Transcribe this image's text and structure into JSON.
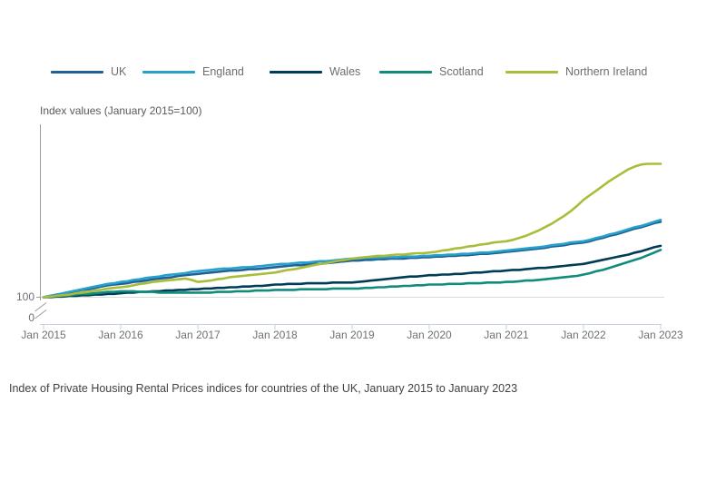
{
  "caption": "Index of Private Housing Rental Prices indices for countries of the UK, January 2015 to January 2023",
  "chart_data": {
    "type": "line",
    "title": "",
    "ylabel": "Index values (January 2015=100)",
    "xlabel": "",
    "x_unit": "month",
    "x_start": "Jan 2015",
    "x_end": "Jan 2023",
    "x_tick_labels": [
      "Jan 2015",
      "Jan 2016",
      "Jan 2017",
      "Jan 2018",
      "Jan 2019",
      "Jan 2020",
      "Jan 2021",
      "Jan 2022",
      "Jan 2023"
    ],
    "y_tick_labels": [
      "100",
      "0"
    ],
    "y_axis_break": true,
    "ylim_display": [
      100,
      126
    ],
    "grid": "single light horizontal gridline at index value 100",
    "legend_position": "top",
    "axis_colors": {
      "y_axis": "#9b9b9b",
      "x_axis": "#c5d0e6",
      "gridline": "#d9d9d9"
    },
    "series": [
      {
        "name": "UK",
        "color": "#206095",
        "values": [
          100.0,
          100.2,
          100.4,
          100.5,
          100.7,
          100.9,
          101.1,
          101.2,
          101.4,
          101.6,
          101.8,
          101.9,
          102.0,
          102.1,
          102.3,
          102.4,
          102.5,
          102.7,
          102.8,
          102.9,
          103.0,
          103.2,
          103.3,
          103.4,
          103.5,
          103.6,
          103.7,
          103.8,
          103.9,
          104.0,
          104.0,
          104.1,
          104.2,
          104.2,
          104.3,
          104.4,
          104.5,
          104.6,
          104.7,
          104.8,
          104.8,
          104.9,
          105.0,
          105.0,
          105.1,
          105.2,
          105.3,
          105.4,
          105.5,
          105.5,
          105.6,
          105.6,
          105.7,
          105.7,
          105.8,
          105.8,
          105.8,
          105.9,
          105.9,
          106.0,
          106.0,
          106.1,
          106.1,
          106.2,
          106.2,
          106.3,
          106.3,
          106.4,
          106.5,
          106.5,
          106.6,
          106.7,
          106.8,
          106.9,
          107.0,
          107.1,
          107.2,
          107.3,
          107.4,
          107.6,
          107.7,
          107.8,
          108.0,
          108.1,
          108.2,
          108.4,
          108.7,
          108.9,
          109.2,
          109.4,
          109.7,
          110.0,
          110.3,
          110.5,
          110.8,
          111.1,
          111.3
        ]
      },
      {
        "name": "England",
        "color": "#27a0cc",
        "values": [
          100.0,
          100.2,
          100.4,
          100.6,
          100.8,
          101.0,
          101.2,
          101.4,
          101.6,
          101.8,
          102.0,
          102.1,
          102.3,
          102.4,
          102.6,
          102.7,
          102.9,
          103.0,
          103.1,
          103.3,
          103.4,
          103.5,
          103.6,
          103.8,
          103.9,
          104.0,
          104.1,
          104.2,
          104.3,
          104.3,
          104.4,
          104.5,
          104.5,
          104.6,
          104.7,
          104.8,
          104.9,
          105.0,
          105.0,
          105.1,
          105.2,
          105.2,
          105.3,
          105.4,
          105.4,
          105.5,
          105.6,
          105.7,
          105.8,
          105.8,
          105.9,
          105.9,
          105.9,
          106.0,
          106.0,
          106.0,
          106.1,
          106.1,
          106.1,
          106.2,
          106.2,
          106.3,
          106.3,
          106.4,
          106.4,
          106.5,
          106.5,
          106.6,
          106.7,
          106.7,
          106.8,
          106.9,
          107.0,
          107.1,
          107.2,
          107.3,
          107.4,
          107.5,
          107.6,
          107.8,
          107.9,
          108.0,
          108.2,
          108.3,
          108.4,
          108.6,
          108.9,
          109.1,
          109.4,
          109.6,
          109.9,
          110.2,
          110.5,
          110.7,
          111.0,
          111.3,
          111.6
        ]
      },
      {
        "name": "Wales",
        "color": "#003c57",
        "values": [
          100.0,
          100.0,
          100.1,
          100.1,
          100.2,
          100.2,
          100.3,
          100.3,
          100.4,
          100.4,
          100.5,
          100.5,
          100.6,
          100.7,
          100.7,
          100.8,
          100.8,
          100.9,
          100.9,
          101.0,
          101.0,
          101.1,
          101.1,
          101.2,
          101.2,
          101.3,
          101.3,
          101.4,
          101.4,
          101.5,
          101.5,
          101.6,
          101.6,
          101.7,
          101.7,
          101.8,
          101.9,
          101.9,
          102.0,
          102.0,
          102.0,
          102.1,
          102.1,
          102.1,
          102.1,
          102.2,
          102.2,
          102.2,
          102.2,
          102.3,
          102.4,
          102.5,
          102.6,
          102.7,
          102.8,
          102.9,
          103.0,
          103.1,
          103.1,
          103.2,
          103.3,
          103.3,
          103.4,
          103.4,
          103.5,
          103.5,
          103.6,
          103.7,
          103.7,
          103.8,
          103.9,
          103.9,
          104.0,
          104.1,
          104.1,
          104.2,
          104.3,
          104.4,
          104.4,
          104.5,
          104.6,
          104.7,
          104.8,
          104.9,
          105.0,
          105.2,
          105.4,
          105.6,
          105.8,
          106.0,
          106.2,
          106.4,
          106.7,
          106.9,
          107.2,
          107.5,
          107.7
        ]
      },
      {
        "name": "Scotland",
        "color": "#118c7b",
        "values": [
          100.0,
          100.1,
          100.2,
          100.2,
          100.3,
          100.4,
          100.5,
          100.5,
          100.6,
          100.7,
          100.8,
          100.8,
          100.9,
          100.9,
          100.9,
          100.8,
          100.8,
          100.8,
          100.7,
          100.7,
          100.7,
          100.7,
          100.7,
          100.7,
          100.7,
          100.7,
          100.7,
          100.8,
          100.8,
          100.8,
          100.9,
          100.9,
          100.9,
          101.0,
          101.0,
          101.0,
          101.1,
          101.1,
          101.1,
          101.1,
          101.2,
          101.2,
          101.2,
          101.2,
          101.2,
          101.3,
          101.3,
          101.3,
          101.3,
          101.3,
          101.4,
          101.4,
          101.5,
          101.5,
          101.6,
          101.6,
          101.7,
          101.7,
          101.8,
          101.8,
          101.9,
          101.9,
          101.9,
          102.0,
          102.0,
          102.0,
          102.1,
          102.1,
          102.1,
          102.2,
          102.2,
          102.2,
          102.3,
          102.3,
          102.4,
          102.5,
          102.5,
          102.6,
          102.7,
          102.8,
          102.9,
          103.0,
          103.1,
          103.2,
          103.4,
          103.6,
          103.9,
          104.1,
          104.4,
          104.7,
          105.0,
          105.3,
          105.6,
          105.9,
          106.3,
          106.7,
          107.1
        ]
      },
      {
        "name": "Northern Ireland",
        "color": "#a8bd3a",
        "values": [
          100.0,
          100.1,
          100.2,
          100.3,
          100.4,
          100.6,
          100.7,
          100.8,
          101.0,
          101.1,
          101.3,
          101.4,
          101.5,
          101.6,
          101.8,
          102.0,
          102.1,
          102.3,
          102.4,
          102.5,
          102.6,
          102.7,
          102.8,
          102.6,
          102.3,
          102.4,
          102.5,
          102.7,
          102.8,
          103.0,
          103.1,
          103.2,
          103.3,
          103.4,
          103.5,
          103.6,
          103.7,
          103.9,
          104.1,
          104.2,
          104.4,
          104.6,
          104.8,
          105.0,
          105.1,
          105.3,
          105.5,
          105.6,
          105.8,
          105.9,
          106.0,
          106.1,
          106.2,
          106.2,
          106.3,
          106.4,
          106.4,
          106.5,
          106.6,
          106.6,
          106.7,
          106.8,
          107.0,
          107.1,
          107.3,
          107.4,
          107.6,
          107.7,
          107.9,
          108.0,
          108.2,
          108.3,
          108.4,
          108.6,
          108.9,
          109.2,
          109.6,
          110.0,
          110.5,
          111.0,
          111.6,
          112.2,
          112.9,
          113.7,
          114.6,
          115.3,
          116.0,
          116.7,
          117.4,
          118.0,
          118.6,
          119.2,
          119.6,
          119.9,
          120.0,
          120.0,
          120.0
        ]
      }
    ]
  }
}
